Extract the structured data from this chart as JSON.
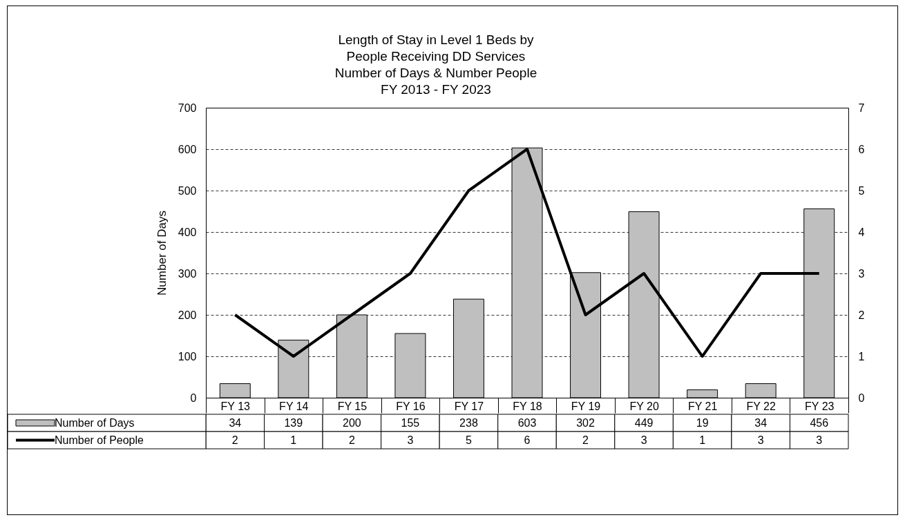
{
  "chart_data": {
    "type": "bar",
    "title": "Length of Stay in Level 1 Beds by\nPeople Receiving DD Services\nNumber of Days & Number People\nFY 2013 - FY 2023",
    "ylabel": "Number of Days",
    "categories": [
      "FY 13",
      "FY 14",
      "FY 15",
      "FY 16",
      "FY 17",
      "FY 18",
      "FY 19",
      "FY 20",
      "FY 21",
      "FY 22",
      "FY 23"
    ],
    "series": [
      {
        "name": "Number of Days",
        "color": "#bfbfbf",
        "values": [
          34,
          139,
          200,
          155,
          238,
          603,
          302,
          449,
          19,
          34,
          456
        ]
      },
      {
        "name": "Number of People",
        "type": "line",
        "axis": "y2",
        "color": "#000000",
        "values": [
          2,
          1,
          2,
          3,
          5,
          6,
          2,
          3,
          1,
          3,
          3
        ]
      }
    ],
    "ylim": [
      0,
      700
    ],
    "yticks": [
      0,
      100,
      200,
      300,
      400,
      500,
      600,
      700
    ],
    "y2lim": [
      0,
      7
    ],
    "y2ticks": [
      0,
      1,
      2,
      3,
      4,
      5,
      6,
      7
    ],
    "grid": "y",
    "data_labels": true,
    "legend": "bottom left"
  }
}
